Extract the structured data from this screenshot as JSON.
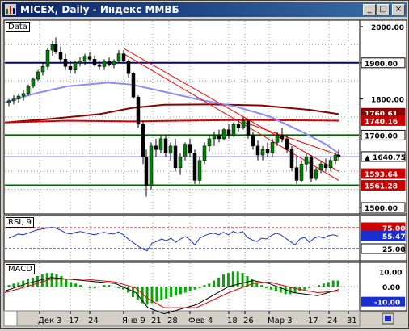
{
  "window": {
    "title": "MICEX, Daily - Индекс ММВБ",
    "minimize_label": "_",
    "maximize_label": "□",
    "close_label": "×"
  },
  "panels": {
    "price_label": "Data",
    "rsi_label": "RSI, 9",
    "macd_label": "MACD"
  },
  "price_axis": {
    "ticks": [
      "2000.00",
      "1900.00",
      "1800.00",
      "1700.00",
      "1500.00"
    ],
    "badges": [
      {
        "text": "1900.00",
        "bg": "#ffffff",
        "fg": "#000000",
        "border": "#000000"
      },
      {
        "text": "1760.61",
        "bg": "#8b0000",
        "fg": "#ffffff"
      },
      {
        "text": "1740.16",
        "bg": "#cc0000",
        "fg": "#ffffff"
      },
      {
        "text": "1700.00",
        "bg": "#ffffff",
        "fg": "#000000",
        "border": "#000000"
      },
      {
        "text": "1640.75",
        "bg": "#ffffff",
        "fg": "#000000",
        "border": "#000000",
        "marker": "▲"
      },
      {
        "text": "1593.64",
        "bg": "#cc0000",
        "fg": "#ffffff"
      },
      {
        "text": "1561.28",
        "bg": "#cc0000",
        "fg": "#ffffff"
      },
      {
        "text": "1500.00",
        "bg": "#ffffff",
        "fg": "#000000",
        "border": "#000000"
      }
    ]
  },
  "rsi_axis": {
    "badges": [
      {
        "text": "75.00",
        "bg": "#cc0000",
        "fg": "#ffffff"
      },
      {
        "text": "55.47",
        "bg": "#1a2fcf",
        "fg": "#ffffff"
      },
      {
        "text": "25.00",
        "bg": "#ffffff",
        "fg": "#000000",
        "border": "#000000"
      }
    ]
  },
  "macd_axis": {
    "ticks": [
      "10.00",
      "0.00",
      "-10.00"
    ]
  },
  "date_axis": {
    "labels": [
      "Дек 3",
      "17",
      "24",
      "Янв 9",
      "21",
      "28",
      "Фев 4",
      "18",
      "26",
      "Мар 3",
      "17",
      "24",
      "31"
    ]
  },
  "colors": {
    "background": "#ffffff",
    "grid": "#9a9a9a",
    "candle_up": "#008000",
    "candle_down": "#000000",
    "ma_fast": "#8c8cff",
    "ma_slow": "#8b0000",
    "ma_mid": "#dd0000",
    "hline_green": "#006600",
    "hline_blue": "#000080",
    "trend_red": "#ff0000",
    "rsi_line": "#1a2fcf",
    "macd_hist": "#00aa00",
    "macd_line": "#000000",
    "signal_line": "#dd0000"
  }
}
